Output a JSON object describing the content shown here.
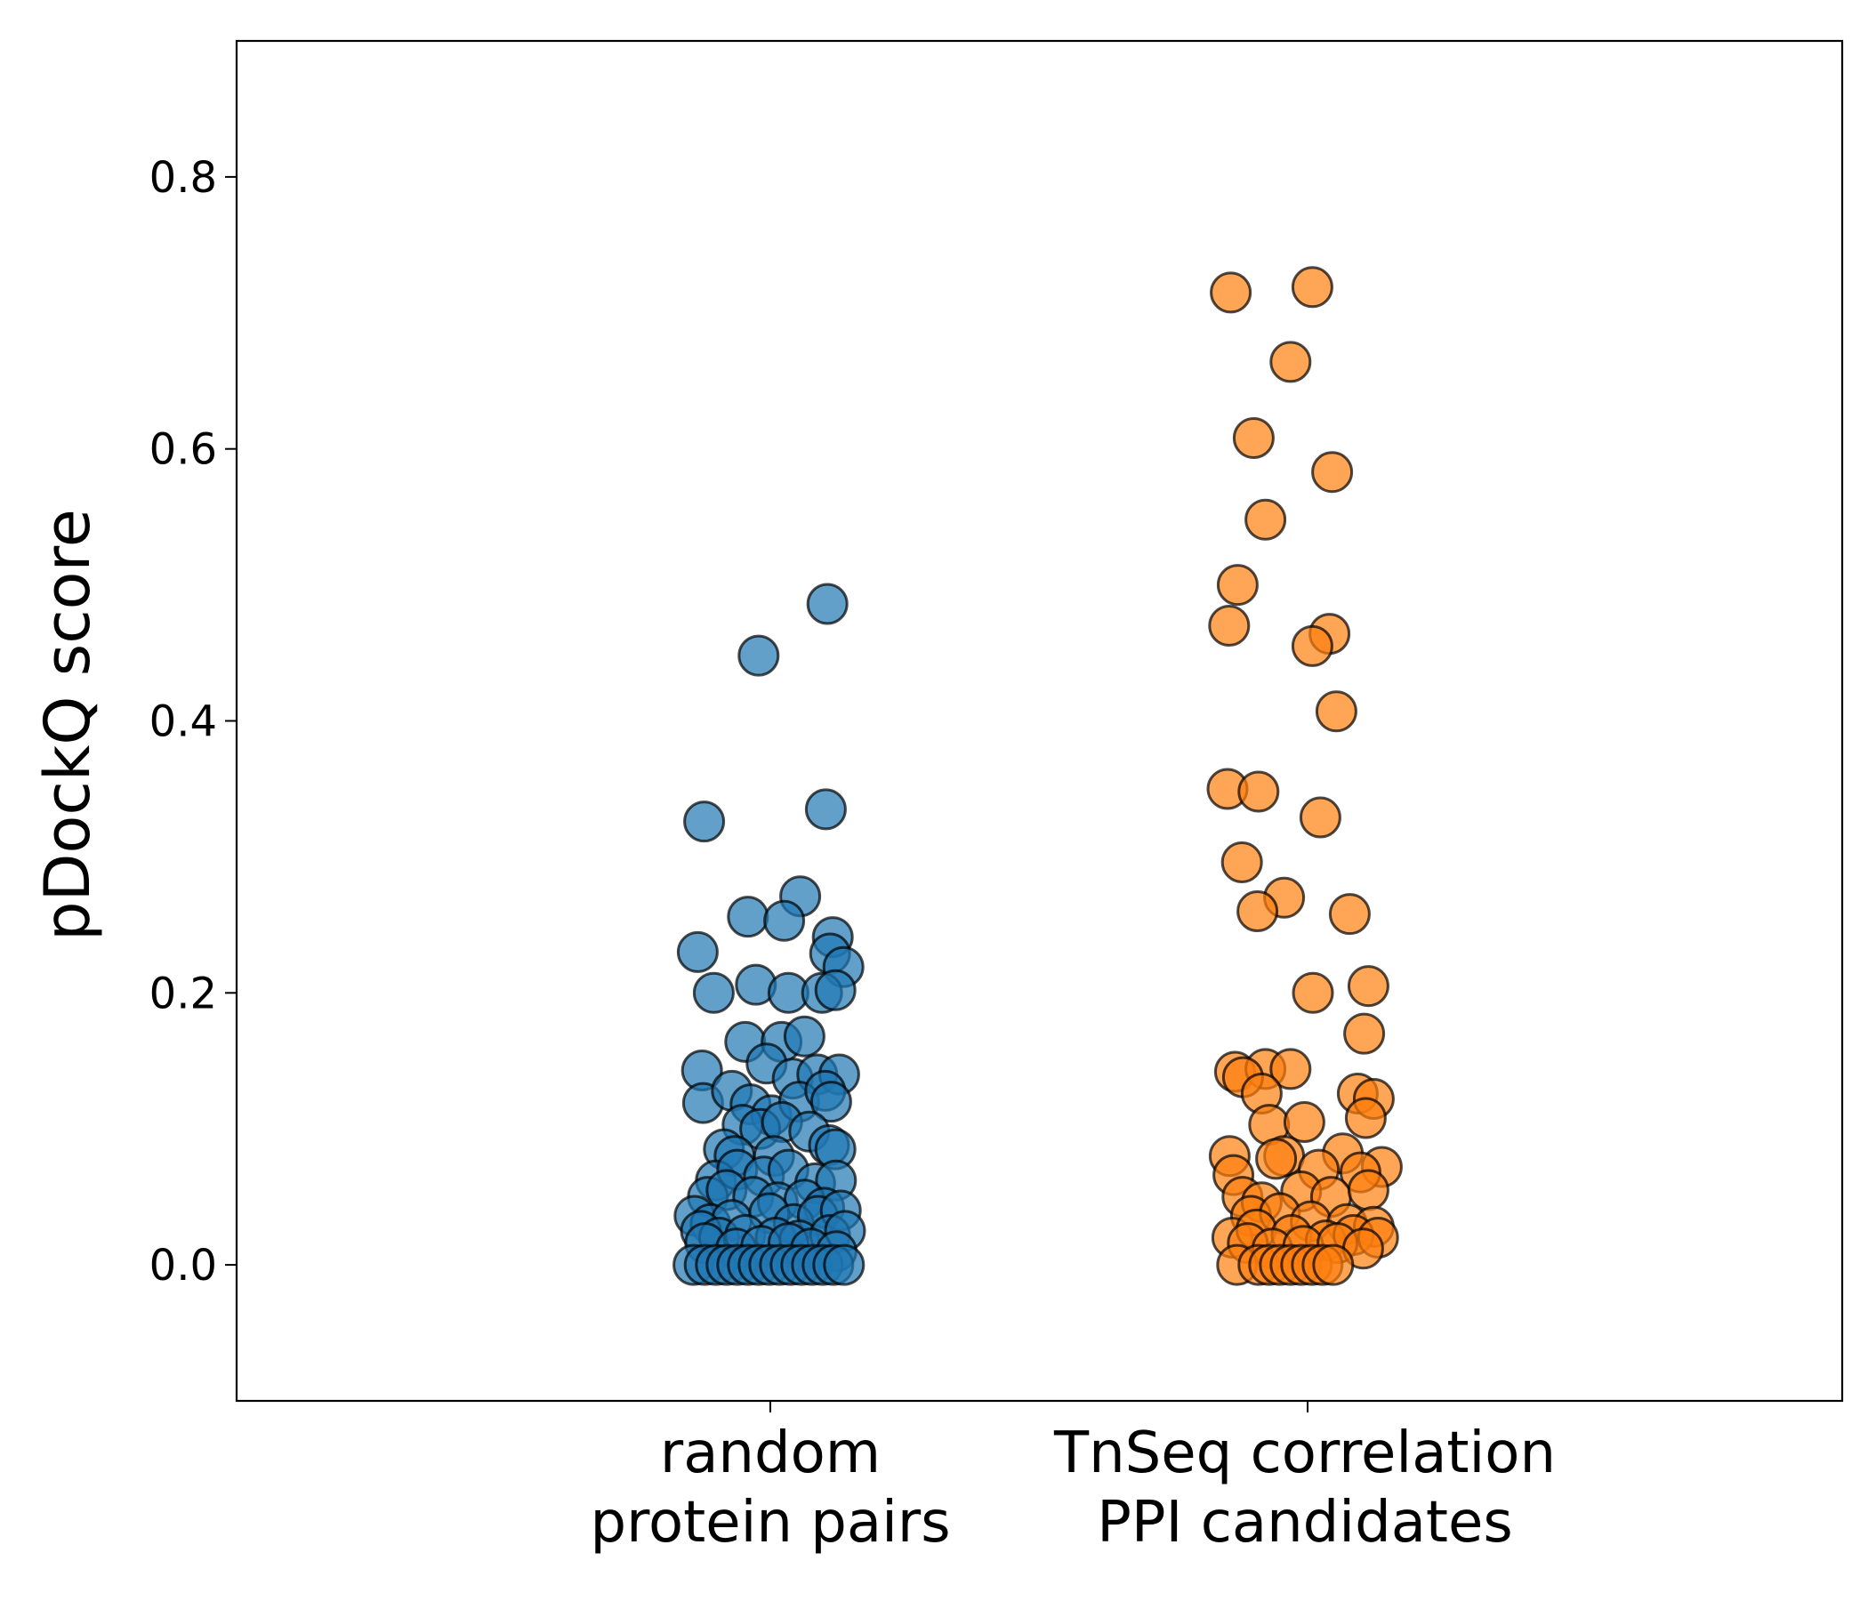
{
  "chart_data": {
    "type": "scatter",
    "title": "",
    "xlabel": "",
    "ylabel": "pDockQ score",
    "ylim": [
      -0.1,
      0.9
    ],
    "yticks": [
      0.0,
      0.2,
      0.4,
      0.6,
      0.8
    ],
    "ytick_labels": [
      "0.0",
      "0.2",
      "0.4",
      "0.6",
      "0.8"
    ],
    "grid": false,
    "categories": [
      {
        "label_line1": "random",
        "label_line2": "protein pairs"
      },
      {
        "label_line1": "TnSeq correlation",
        "label_line2": "PPI candidates"
      }
    ],
    "series": [
      {
        "name": "random protein pairs",
        "color": "#1f77b4",
        "points": [
          [
            0.107,
            0.486
          ],
          [
            -0.022,
            0.448
          ],
          [
            -0.124,
            0.326
          ],
          [
            0.104,
            0.335
          ],
          [
            0.056,
            0.271
          ],
          [
            -0.042,
            0.256
          ],
          [
            0.026,
            0.253
          ],
          [
            0.117,
            0.241
          ],
          [
            -0.136,
            0.23
          ],
          [
            0.112,
            0.229
          ],
          [
            0.137,
            0.219
          ],
          [
            -0.106,
            0.2
          ],
          [
            -0.027,
            0.206
          ],
          [
            0.034,
            0.2
          ],
          [
            0.097,
            0.2
          ],
          [
            0.122,
            0.202
          ],
          [
            -0.047,
            0.164
          ],
          [
            0.021,
            0.164
          ],
          [
            0.064,
            0.168
          ],
          [
            -0.128,
            0.143
          ],
          [
            -0.007,
            0.148
          ],
          [
            0.042,
            0.137
          ],
          [
            0.088,
            0.14
          ],
          [
            0.129,
            0.14
          ],
          [
            -0.126,
            0.119
          ],
          [
            -0.072,
            0.128
          ],
          [
            -0.037,
            0.118
          ],
          [
            0.002,
            0.11
          ],
          [
            0.054,
            0.12
          ],
          [
            0.103,
            0.128
          ],
          [
            0.114,
            0.12
          ],
          [
            -0.052,
            0.103
          ],
          [
            -0.019,
            0.1
          ],
          [
            0.022,
            0.105
          ],
          [
            0.073,
            0.098
          ],
          [
            -0.087,
            0.085
          ],
          [
            -0.067,
            0.08
          ],
          [
            0.007,
            0.08
          ],
          [
            0.11,
            0.088
          ],
          [
            0.122,
            0.085
          ],
          [
            -0.102,
            0.062
          ],
          [
            -0.062,
            0.07
          ],
          [
            -0.012,
            0.065
          ],
          [
            0.034,
            0.07
          ],
          [
            0.084,
            0.06
          ],
          [
            0.123,
            0.062
          ],
          [
            -0.117,
            0.05
          ],
          [
            -0.082,
            0.055
          ],
          [
            -0.032,
            0.05
          ],
          [
            0.014,
            0.046
          ],
          [
            0.064,
            0.048
          ],
          [
            0.101,
            0.042
          ],
          [
            -0.142,
            0.036
          ],
          [
            -0.112,
            0.03
          ],
          [
            -0.072,
            0.033
          ],
          [
            -0.002,
            0.038
          ],
          [
            0.044,
            0.03
          ],
          [
            0.089,
            0.036
          ],
          [
            0.132,
            0.04
          ],
          [
            -0.13,
            0.025
          ],
          [
            -0.096,
            0.02
          ],
          [
            -0.047,
            0.022
          ],
          [
            0.01,
            0.02
          ],
          [
            0.054,
            0.018
          ],
          [
            0.112,
            0.022
          ],
          [
            0.14,
            0.025
          ],
          [
            -0.122,
            0.016
          ],
          [
            -0.064,
            0.012
          ],
          [
            -0.017,
            0.014
          ],
          [
            0.034,
            0.016
          ],
          [
            0.076,
            0.012
          ],
          [
            0.124,
            0.01
          ],
          [
            -0.144,
            0.0
          ],
          [
            -0.123,
            0.0
          ],
          [
            -0.102,
            0.0
          ],
          [
            -0.082,
            0.0
          ],
          [
            -0.062,
            0.0
          ],
          [
            -0.042,
            0.0
          ],
          [
            -0.022,
            0.0
          ],
          [
            -0.002,
            0.0
          ],
          [
            0.018,
            0.0
          ],
          [
            0.038,
            0.0
          ],
          [
            0.058,
            0.0
          ],
          [
            0.078,
            0.0
          ],
          [
            0.098,
            0.0
          ],
          [
            0.118,
            0.0
          ],
          [
            0.138,
            0.0
          ]
        ]
      },
      {
        "name": "TnSeq correlation PPI candidates",
        "color": "#ff7f0e",
        "points": [
          [
            -0.144,
            0.715
          ],
          [
            0.009,
            0.719
          ],
          [
            -0.032,
            0.664
          ],
          [
            -0.101,
            0.608
          ],
          [
            0.046,
            0.583
          ],
          [
            -0.079,
            0.548
          ],
          [
            -0.131,
            0.5
          ],
          [
            -0.147,
            0.47
          ],
          [
            0.041,
            0.464
          ],
          [
            0.009,
            0.455
          ],
          [
            0.054,
            0.407
          ],
          [
            -0.15,
            0.35
          ],
          [
            -0.092,
            0.348
          ],
          [
            0.024,
            0.329
          ],
          [
            -0.123,
            0.296
          ],
          [
            -0.044,
            0.27
          ],
          [
            -0.094,
            0.26
          ],
          [
            0.079,
            0.258
          ],
          [
            0.114,
            0.205
          ],
          [
            0.01,
            0.2
          ],
          [
            0.106,
            0.17
          ],
          [
            -0.136,
            0.142
          ],
          [
            -0.079,
            0.144
          ],
          [
            -0.032,
            0.144
          ],
          [
            -0.121,
            0.138
          ],
          [
            -0.086,
            0.126
          ],
          [
            0.094,
            0.126
          ],
          [
            0.124,
            0.122
          ],
          [
            -0.072,
            0.103
          ],
          [
            -0.006,
            0.105
          ],
          [
            0.109,
            0.108
          ],
          [
            -0.146,
            0.08
          ],
          [
            -0.044,
            0.08
          ],
          [
            0.066,
            0.082
          ],
          [
            0.139,
            0.072
          ],
          [
            -0.139,
            0.066
          ],
          [
            -0.059,
            0.078
          ],
          [
            0.021,
            0.07
          ],
          [
            0.099,
            0.068
          ],
          [
            -0.122,
            0.05
          ],
          [
            -0.086,
            0.046
          ],
          [
            -0.012,
            0.054
          ],
          [
            0.044,
            0.05
          ],
          [
            0.114,
            0.055
          ],
          [
            -0.106,
            0.036
          ],
          [
            -0.052,
            0.038
          ],
          [
            0.006,
            0.032
          ],
          [
            0.074,
            0.03
          ],
          [
            0.124,
            0.028
          ],
          [
            -0.141,
            0.02
          ],
          [
            -0.096,
            0.026
          ],
          [
            -0.03,
            0.022
          ],
          [
            0.034,
            0.018
          ],
          [
            0.086,
            0.022
          ],
          [
            0.132,
            0.02
          ],
          [
            -0.112,
            0.016
          ],
          [
            -0.066,
            0.012
          ],
          [
            -0.008,
            0.014
          ],
          [
            0.056,
            0.016
          ],
          [
            0.104,
            0.012
          ],
          [
            -0.132,
            0.0
          ],
          [
            -0.092,
            0.0
          ],
          [
            -0.072,
            0.0
          ],
          [
            -0.052,
            0.0
          ],
          [
            -0.032,
            0.0
          ],
          [
            -0.012,
            0.0
          ],
          [
            0.008,
            0.0
          ],
          [
            0.028,
            0.0
          ],
          [
            0.048,
            0.0
          ]
        ]
      }
    ]
  }
}
